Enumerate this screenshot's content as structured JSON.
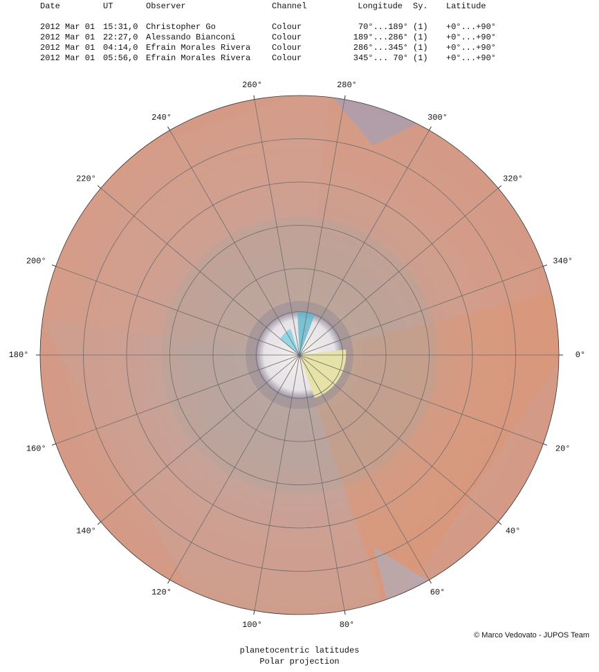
{
  "header": {
    "columns": [
      "Date",
      "UT",
      "Observer",
      "Channel",
      "Longitude",
      "Sy.",
      "Latitude"
    ],
    "rows": [
      [
        "2012 Mar 01",
        "15:31,0",
        "Christopher Go",
        "Colour",
        "70°...189°",
        "(1)",
        "+0°...+90°"
      ],
      [
        "2012 Mar 01",
        "22:27,0",
        "Alessando Bianconi",
        "Colour",
        "189°...286°",
        "(1)",
        "+0°...+90°"
      ],
      [
        "2012 Mar 01",
        "04:14,0",
        "Efrain Morales Rivera",
        "Colour",
        "286°...345°",
        "(1)",
        "+0°...+90°"
      ],
      [
        "2012 Mar 01",
        "05:56,0",
        "Efrain Morales Rivera",
        "Colour",
        "345°... 70°",
        "(1)",
        "+0°...+90°"
      ]
    ]
  },
  "map": {
    "longitude_labels": [
      {
        "value": 0,
        "label": "0°"
      },
      {
        "value": 20,
        "label": "20°"
      },
      {
        "value": 40,
        "label": "40°"
      },
      {
        "value": 60,
        "label": "60°"
      },
      {
        "value": 80,
        "label": "80°"
      },
      {
        "value": 100,
        "label": "100°"
      },
      {
        "value": 120,
        "label": "120°"
      },
      {
        "value": 140,
        "label": "140°"
      },
      {
        "value": 160,
        "label": "160°"
      },
      {
        "value": 180,
        "label": "180°"
      },
      {
        "value": 200,
        "label": "200°"
      },
      {
        "value": 220,
        "label": "220°"
      },
      {
        "value": 240,
        "label": "240°"
      },
      {
        "value": 260,
        "label": "260°"
      },
      {
        "value": 280,
        "label": "280°"
      },
      {
        "value": 300,
        "label": "300°"
      },
      {
        "value": 320,
        "label": "320°"
      },
      {
        "value": 340,
        "label": "340°"
      }
    ]
  },
  "footer": {
    "line1": "planetocentric latitudes",
    "line2": "Polar projection",
    "credit": "© Marco Vedovato - JUPOS Team"
  }
}
